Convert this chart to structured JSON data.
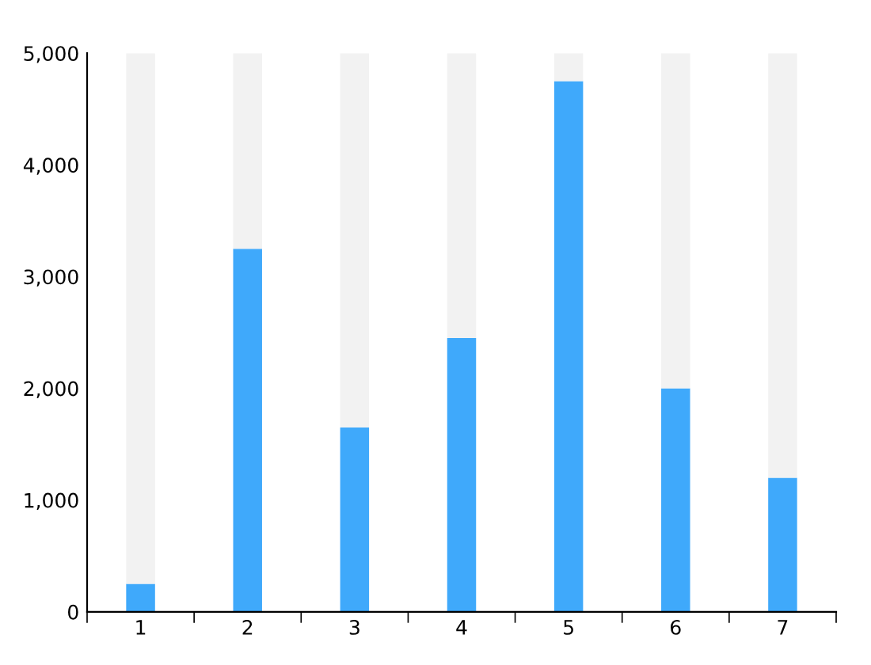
{
  "chart_data": {
    "type": "bar",
    "stacked": true,
    "categories": [
      "1",
      "2",
      "3",
      "4",
      "5",
      "6",
      "7"
    ],
    "series": [
      {
        "color": "#3fa9fb",
        "values": [
          250,
          3250,
          1650,
          2450,
          4750,
          2000,
          1200
        ]
      },
      {
        "color": "#f2f2f2",
        "values": [
          4750,
          1750,
          3350,
          2550,
          250,
          3000,
          3800
        ]
      }
    ],
    "ylim": [
      0,
      5000
    ],
    "yticks": [
      {
        "value": 0,
        "label": "0"
      },
      {
        "value": 1000,
        "label": "1,000"
      },
      {
        "value": 2000,
        "label": "2,000"
      },
      {
        "value": 3000,
        "label": "3,000"
      },
      {
        "value": 4000,
        "label": "4,000"
      },
      {
        "value": 5000,
        "label": "5,000"
      }
    ],
    "grid": false,
    "legend": false
  }
}
